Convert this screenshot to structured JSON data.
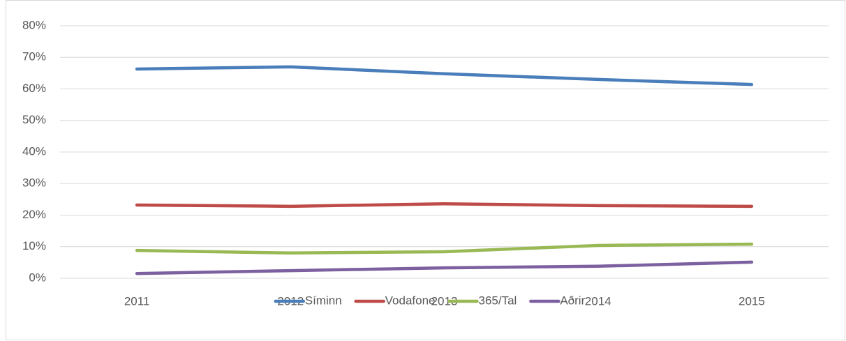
{
  "chart_data": {
    "type": "line",
    "categories": [
      "2011",
      "2012",
      "2013",
      "2014",
      "2015"
    ],
    "series": [
      {
        "name": "Síminn",
        "color": "#4a7ebb",
        "values": [
          66.3,
          67.0,
          64.8,
          63.0,
          61.4
        ]
      },
      {
        "name": "Vodafone",
        "color": "#be4b48",
        "values": [
          23.2,
          22.8,
          23.6,
          23.0,
          22.8
        ]
      },
      {
        "name": "365/Tal",
        "color": "#98b954",
        "values": [
          8.8,
          8.0,
          8.4,
          10.4,
          10.8
        ]
      },
      {
        "name": "Aðrir",
        "color": "#7d60a0",
        "values": [
          1.5,
          2.4,
          3.3,
          3.8,
          5.1
        ]
      }
    ],
    "ylim": [
      0,
      80
    ],
    "yticks": [
      {
        "value": 0,
        "label": "0%"
      },
      {
        "value": 10,
        "label": "10%"
      },
      {
        "value": 20,
        "label": "20%"
      },
      {
        "value": 30,
        "label": "30%"
      },
      {
        "value": 40,
        "label": "40%"
      },
      {
        "value": 50,
        "label": "50%"
      },
      {
        "value": 60,
        "label": "60%"
      },
      {
        "value": 70,
        "label": "70%"
      },
      {
        "value": 80,
        "label": "80%"
      }
    ],
    "grid": true,
    "legend": "bottom"
  }
}
